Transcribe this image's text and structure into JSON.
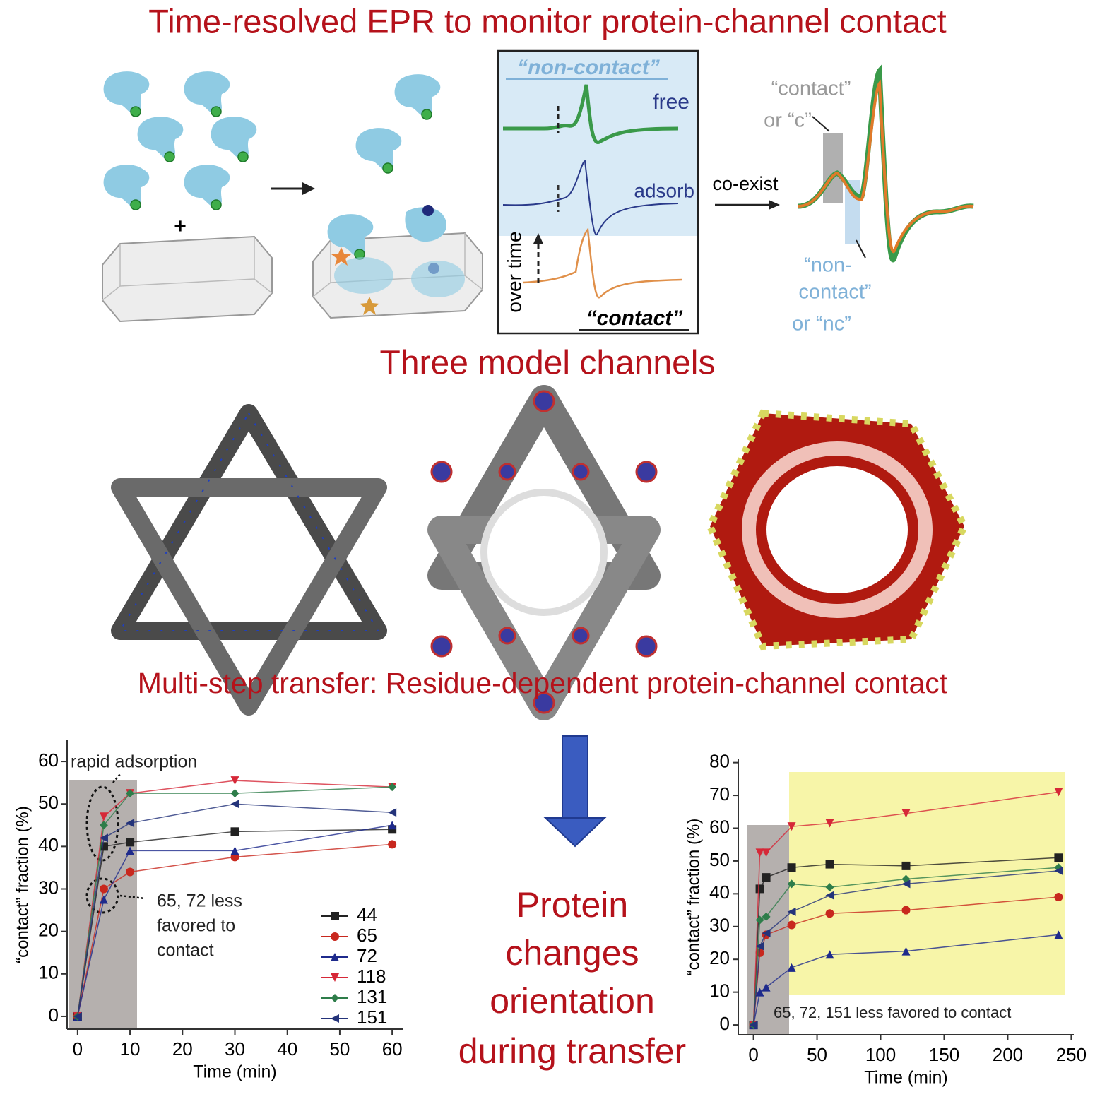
{
  "header": {
    "title": "Time-resolved EPR to monitor protein-channel contact"
  },
  "plus": "+",
  "epr_panel": {
    "non_contact": "“non-contact”",
    "free": "free",
    "adsorb": "adsorb",
    "over_time": "over time",
    "contact": "“contact”"
  },
  "coexist": {
    "arrow_label": "co-exist",
    "contact_lines": [
      "“contact”",
      "or “c”"
    ],
    "noncontact_lines": [
      "“non-",
      "contact”",
      "or “nc”"
    ]
  },
  "section_channels": "Three model channels",
  "section_transfer": "Multi-step transfer: Residue-dependent protein-channel contact",
  "center_text": [
    "Protein",
    "changes",
    "orientation",
    "during transfer"
  ],
  "chart_data": [
    {
      "type": "line",
      "xlabel": "Time (min)",
      "ylabel": "“contact” fraction (%)",
      "x": [
        0,
        5,
        10,
        30,
        60
      ],
      "xlim": [
        -2,
        62
      ],
      "ylim": [
        -3,
        65
      ],
      "xticks": [
        0,
        10,
        20,
        30,
        40,
        50,
        60
      ],
      "yticks": [
        0,
        10,
        20,
        30,
        40,
        50,
        60
      ],
      "legend": true,
      "annotations": [
        "rapid adsorption",
        "65, 72 less",
        "favored to",
        "contact"
      ],
      "series": [
        {
          "name": "44",
          "color": "#222222",
          "marker": "square",
          "values": [
            0,
            40,
            41,
            43.5,
            44
          ]
        },
        {
          "name": "65",
          "color": "#c8281e",
          "marker": "circle",
          "values": [
            0,
            30,
            34,
            37.5,
            40.5
          ]
        },
        {
          "name": "72",
          "color": "#1e2a8c",
          "marker": "tri-up",
          "values": [
            0,
            27.5,
            39,
            39,
            45
          ]
        },
        {
          "name": "118",
          "color": "#d62838",
          "marker": "tri-down",
          "values": [
            0,
            47,
            52.5,
            55.5,
            54
          ]
        },
        {
          "name": "131",
          "color": "#2e7d4a",
          "marker": "diamond",
          "values": [
            0,
            45,
            52.5,
            52.5,
            54
          ]
        },
        {
          "name": "151",
          "color": "#24337a",
          "marker": "tri-left",
          "values": [
            0,
            42,
            45.5,
            50,
            48
          ]
        }
      ]
    },
    {
      "type": "line",
      "xlabel": "Time (min)",
      "ylabel": "“contact” fraction (%)",
      "x": [
        0,
        5,
        10,
        30,
        60,
        120,
        240
      ],
      "xlim": [
        -12,
        252
      ],
      "ylim": [
        -3,
        81
      ],
      "xticks": [
        0,
        50,
        100,
        150,
        200,
        250
      ],
      "yticks": [
        0,
        10,
        20,
        30,
        40,
        50,
        60,
        70,
        80
      ],
      "legend": false,
      "annotations": [
        "65, 72, 151 less favored to contact"
      ],
      "series": [
        {
          "color": "#222222",
          "marker": "square",
          "values": [
            0,
            41.5,
            45,
            48,
            49,
            48.5,
            51
          ]
        },
        {
          "color": "#c8281e",
          "marker": "circle",
          "values": [
            0,
            22,
            27.5,
            30.5,
            34,
            35,
            39
          ]
        },
        {
          "color": "#1e2a8c",
          "marker": "tri-up",
          "values": [
            0,
            10,
            11.5,
            17.5,
            21.5,
            22.5,
            27.5
          ]
        },
        {
          "color": "#d62838",
          "marker": "tri-down",
          "values": [
            0,
            52.5,
            52.5,
            60.5,
            61.5,
            64.5,
            71
          ]
        },
        {
          "color": "#2e7d4a",
          "marker": "diamond",
          "values": [
            0,
            32,
            33,
            43,
            42,
            44.5,
            48
          ]
        },
        {
          "color": "#24337a",
          "marker": "tri-left",
          "values": [
            0,
            24,
            28,
            34.5,
            39.5,
            43,
            47
          ]
        }
      ]
    }
  ]
}
